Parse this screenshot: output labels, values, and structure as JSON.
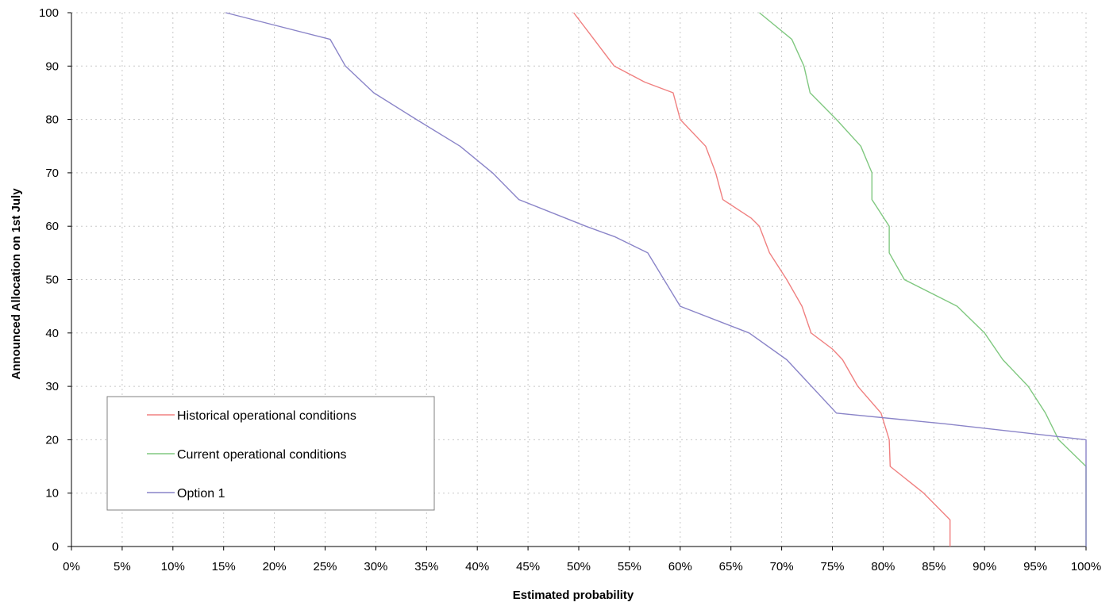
{
  "chart_data": {
    "type": "line",
    "title": "",
    "xlabel": "Estimated probability",
    "ylabel": "Announced Allocation on 1st July",
    "xlim": [
      0,
      100
    ],
    "ylim": [
      0,
      100
    ],
    "x_unit": "%",
    "x_ticks": [
      0,
      5,
      10,
      15,
      20,
      25,
      30,
      35,
      40,
      45,
      50,
      55,
      60,
      65,
      70,
      75,
      80,
      85,
      90,
      95,
      100
    ],
    "x_tick_labels": [
      "0%",
      "5%",
      "10%",
      "15%",
      "20%",
      "25%",
      "30%",
      "35%",
      "40%",
      "45%",
      "50%",
      "55%",
      "60%",
      "65%",
      "70%",
      "75%",
      "80%",
      "85%",
      "90%",
      "95%",
      "100%"
    ],
    "y_ticks": [
      0,
      10,
      20,
      30,
      40,
      50,
      60,
      70,
      80,
      90,
      100
    ],
    "y_tick_labels": [
      "0",
      "10",
      "20",
      "30",
      "40",
      "50",
      "60",
      "70",
      "80",
      "90",
      "100"
    ],
    "grid": true,
    "legend": "bottom-left",
    "series": [
      {
        "name": "Historical operational conditions",
        "color": "#f08080",
        "points": [
          [
            49.5,
            100
          ],
          [
            51.5,
            95
          ],
          [
            53.5,
            90
          ],
          [
            56.5,
            87
          ],
          [
            59.3,
            85
          ],
          [
            60,
            80
          ],
          [
            62.5,
            75
          ],
          [
            63.5,
            70
          ],
          [
            64.2,
            65
          ],
          [
            67,
            61.5
          ],
          [
            67.8,
            60
          ],
          [
            68.8,
            55
          ],
          [
            70.5,
            50
          ],
          [
            72,
            45
          ],
          [
            72.9,
            40
          ],
          [
            75,
            37
          ],
          [
            76,
            35
          ],
          [
            77.5,
            30
          ],
          [
            79.8,
            25
          ],
          [
            80.6,
            20
          ],
          [
            80.7,
            15
          ],
          [
            84,
            10
          ],
          [
            86.6,
            5
          ],
          [
            86.6,
            0
          ]
        ]
      },
      {
        "name": "Current operational conditions",
        "color": "#80c880",
        "points": [
          [
            67.8,
            100
          ],
          [
            71,
            95
          ],
          [
            72.2,
            90
          ],
          [
            72.8,
            85
          ],
          [
            75.4,
            80
          ],
          [
            77.8,
            75
          ],
          [
            78.9,
            70
          ],
          [
            78.9,
            65
          ],
          [
            80.6,
            60
          ],
          [
            80.6,
            55
          ],
          [
            82.1,
            50
          ],
          [
            87.3,
            45
          ],
          [
            90,
            40
          ],
          [
            91.8,
            35
          ],
          [
            94.3,
            30
          ],
          [
            96,
            25
          ],
          [
            97.3,
            20
          ],
          [
            100,
            15
          ],
          [
            100,
            0
          ]
        ]
      },
      {
        "name": "Option 1",
        "color": "#8a84c8",
        "points": [
          [
            15.2,
            100
          ],
          [
            25.5,
            95
          ],
          [
            27,
            90
          ],
          [
            29.8,
            85
          ],
          [
            34,
            80
          ],
          [
            38.3,
            75
          ],
          [
            41.5,
            70
          ],
          [
            44.1,
            65
          ],
          [
            50.7,
            60
          ],
          [
            53.6,
            58
          ],
          [
            56.8,
            55
          ],
          [
            60,
            45
          ],
          [
            66.8,
            40
          ],
          [
            70.5,
            35
          ],
          [
            75.4,
            25
          ],
          [
            86,
            23
          ],
          [
            100,
            20
          ],
          [
            100,
            0
          ]
        ]
      }
    ]
  }
}
